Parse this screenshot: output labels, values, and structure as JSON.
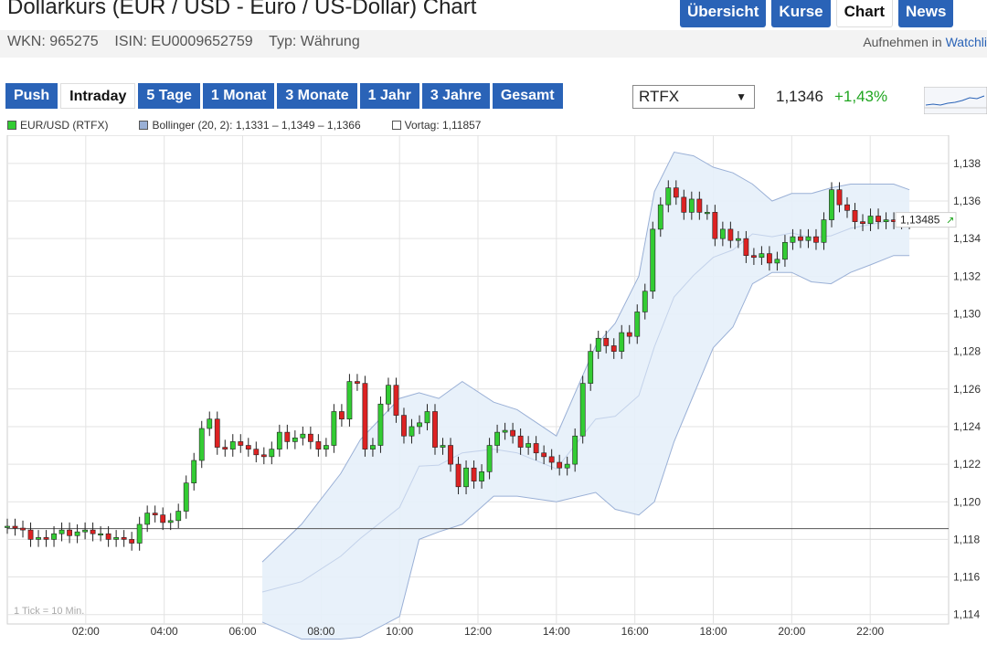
{
  "header": {
    "title": "Dollarkurs (EUR / USD - Euro / US-Dollar) Chart",
    "wkn": "WKN: 965275",
    "isin": "ISIN: EU0009652759",
    "typ": "Typ: Währung",
    "watch_prefix": "Aufnehmen in",
    "watch_link": "Watchli"
  },
  "top_tabs": [
    {
      "label": "Übersicht",
      "active": false
    },
    {
      "label": "Kurse",
      "active": false
    },
    {
      "label": "Chart",
      "active": true
    },
    {
      "label": "News",
      "active": false
    }
  ],
  "range_tabs": [
    {
      "label": "Push",
      "active": false
    },
    {
      "label": "Intraday",
      "active": true
    },
    {
      "label": "5 Tage",
      "active": false
    },
    {
      "label": "1 Monat",
      "active": false
    },
    {
      "label": "3 Monate",
      "active": false
    },
    {
      "label": "1 Jahr",
      "active": false
    },
    {
      "label": "3 Jahre",
      "active": false
    },
    {
      "label": "Gesamt",
      "active": false
    }
  ],
  "exchange": {
    "selected": "RTFX"
  },
  "quote": {
    "price": "1,1346",
    "change": "+1,43%"
  },
  "colors": {
    "accent": "#2a63b7",
    "up": "#33cc33",
    "down": "#dd2222",
    "band_fill": "#e6effa",
    "band_line": "#9ab0d6",
    "positive": "#1fa51f"
  },
  "legend": {
    "series": "EUR/USD (RTFX)",
    "bollinger": "Bollinger (20, 2): 1,1331 – 1,1349 – 1,1366",
    "vortag": "Vortag: 1,11857"
  },
  "chart_data": {
    "type": "candlestick",
    "x_ticks": [
      "02:00",
      "04:00",
      "06:00",
      "08:00",
      "10:00",
      "12:00",
      "14:00",
      "16:00",
      "18:00",
      "20:00",
      "22:00"
    ],
    "y_ticks": [
      "1,138",
      "1,136",
      "1,134",
      "1,132",
      "1,130",
      "1,128",
      "1,126",
      "1,124",
      "1,122",
      "1,120",
      "1,118",
      "1,116",
      "1,114"
    ],
    "ylim": [
      1.1135,
      1.1395
    ],
    "xlim_hours": [
      0.0,
      24.0
    ],
    "grid": true,
    "previous_close": 1.11857,
    "last_value_label": "1,13485",
    "tick_note": "1 Tick = 10 Min.",
    "closes": [
      1.1187,
      1.1186,
      1.1185,
      1.118,
      1.1181,
      1.118,
      1.1183,
      1.1185,
      1.1182,
      1.1184,
      1.1185,
      1.1183,
      1.1183,
      1.118,
      1.1181,
      1.118,
      1.1178,
      1.1188,
      1.1194,
      1.1193,
      1.1189,
      1.119,
      1.1195,
      1.121,
      1.1222,
      1.1239,
      1.1244,
      1.1229,
      1.1228,
      1.1232,
      1.123,
      1.1228,
      1.1225,
      1.1224,
      1.1228,
      1.1237,
      1.1232,
      1.1234,
      1.1236,
      1.1232,
      1.1228,
      1.123,
      1.1248,
      1.1244,
      1.1264,
      1.1263,
      1.1228,
      1.123,
      1.1252,
      1.1262,
      1.1246,
      1.1235,
      1.124,
      1.1242,
      1.1248,
      1.1229,
      1.123,
      1.122,
      1.1208,
      1.1218,
      1.1211,
      1.1216,
      1.123,
      1.1237,
      1.1238,
      1.1235,
      1.1229,
      1.1231,
      1.1226,
      1.1224,
      1.1221,
      1.1218,
      1.122,
      1.1235,
      1.1263,
      1.128,
      1.1287,
      1.1283,
      1.128,
      1.129,
      1.1288,
      1.1301,
      1.1312,
      1.1345,
      1.1358,
      1.1367,
      1.1362,
      1.1354,
      1.1361,
      1.1354,
      1.1354,
      1.134,
      1.1345,
      1.1339,
      1.134,
      1.1331,
      1.133,
      1.1332,
      1.1327,
      1.1329,
      1.1338,
      1.1341,
      1.1339,
      1.1341,
      1.1338,
      1.135,
      1.1366,
      1.1358,
      1.1355,
      1.1349,
      1.1348,
      1.1352,
      1.1349,
      1.135,
      1.1349,
      1.1349,
      1.135
    ],
    "bollinger": [
      [
        6.5,
        1.1168,
        1.1136
      ],
      [
        7.5,
        1.1188,
        1.1127
      ],
      [
        8.5,
        1.1215,
        1.1127
      ],
      [
        9.0,
        1.1233,
        1.1128
      ],
      [
        10.0,
        1.1255,
        1.1139
      ],
      [
        10.5,
        1.1258,
        1.118
      ],
      [
        11.0,
        1.1255,
        1.1184
      ],
      [
        11.6,
        1.1264,
        1.1188
      ],
      [
        12.4,
        1.1253,
        1.1203
      ],
      [
        13.0,
        1.1249,
        1.1203
      ],
      [
        14.0,
        1.1235,
        1.12
      ],
      [
        15.0,
        1.1283,
        1.1205
      ],
      [
        15.5,
        1.1295,
        1.1196
      ],
      [
        16.1,
        1.132,
        1.1193
      ],
      [
        16.5,
        1.1365,
        1.12
      ],
      [
        17.0,
        1.1386,
        1.1232
      ],
      [
        17.5,
        1.1384,
        1.1257
      ],
      [
        18.0,
        1.1378,
        1.1282
      ],
      [
        18.5,
        1.1375,
        1.1293
      ],
      [
        19.0,
        1.1369,
        1.1316
      ],
      [
        19.5,
        1.136,
        1.1322
      ],
      [
        20.0,
        1.1364,
        1.1322
      ],
      [
        20.5,
        1.1364,
        1.1317
      ],
      [
        21.0,
        1.1367,
        1.1316
      ],
      [
        21.5,
        1.1369,
        1.1322
      ],
      [
        22.0,
        1.1369,
        1.1326
      ],
      [
        22.6,
        1.1369,
        1.1331
      ],
      [
        23.0,
        1.1366,
        1.1331
      ]
    ]
  }
}
